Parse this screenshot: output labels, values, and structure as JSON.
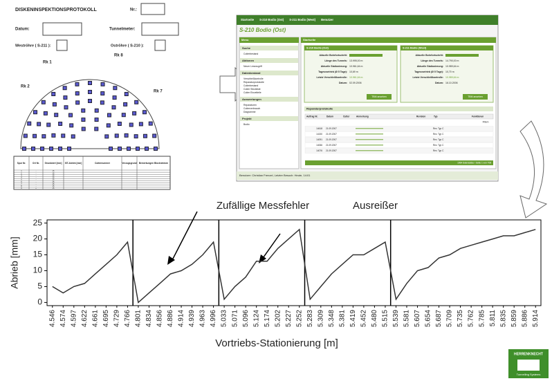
{
  "form": {
    "title": "DISKENINSPEKTIONSPROTOKOLL",
    "nr": "Nr.:",
    "datum": "Datum:",
    "tunnelmeter": "Tunnelmeter:",
    "west": "Weströhre ( S-211 ):",
    "ost": "Oströhre ( S-210 ):",
    "diagram_labels": [
      "Rk 1",
      "Rk 8",
      "Rk 2",
      "Rk 7"
    ],
    "table_headers": [
      "Spur Nr.",
      "Ort Nr.",
      "Grundwert [mm]",
      "IST-Abrieb [mm]",
      "Cutternummer",
      "Verzugsgrund",
      "Bemerkungen Blockrahmen"
    ],
    "rows": [
      [
        "1",
        "-",
        "15"
      ],
      [
        "2",
        "-",
        "15"
      ],
      [
        "3",
        "-",
        "15"
      ],
      [
        "4",
        "-",
        "15"
      ],
      [
        "5",
        "-",
        "15"
      ],
      [
        "6",
        "-",
        "15"
      ],
      [
        "7",
        "-",
        "15"
      ],
      [
        "8",
        "-",
        "15"
      ],
      [
        "9",
        "+",
        "15"
      ]
    ]
  },
  "app": {
    "nav": [
      "Startseite",
      "S-210 Bodio (Ost)",
      "S-211 Bodio (West)",
      "Benutzer"
    ],
    "heading": "S-210 Bodio (Ost)",
    "menu": "Menu",
    "sidebar": [
      {
        "title": "Suche",
        "items": [
          "Cutterbestand"
        ]
      },
      {
        "title": "Aktionen",
        "items": [
          "Neuer Lesezugriff"
        ]
      },
      {
        "title": "Datenbestand",
        "items": [
          "Verschleißkontrolle",
          "Reparaturprotokolle",
          "Cutterbestand",
          "Cutter Stückliste",
          "Cutter Einzelteile"
        ]
      },
      {
        "title": "Auswertungen",
        "items": [
          "Reparaturen",
          "Cutterverbrauch",
          "Diagramme"
        ]
      },
      {
        "title": "Projekt",
        "items": [
          "Bodio"
        ]
      }
    ],
    "start": "Startseite",
    "panels": [
      {
        "title": "S-210 Bodio (Ost)",
        "rows": [
          [
            "Aktuelle Bohrfortschritt:",
            ""
          ],
          [
            "Länge des Tunnels:",
            "13.995,00 m"
          ],
          [
            "Aktuelle Stationierung:",
            "10.961,64 m"
          ],
          [
            "Tagesvortrieb (Ø 5 Tage):",
            "10,69 m"
          ],
          [
            "Letzte Verschleißkontrolle:",
            "10.961,64 m"
          ],
          [
            "Datum:",
            "02.09.2006"
          ]
        ],
        "button": "TBM ansehen"
      },
      {
        "title": "S-211 Bodio (West)",
        "rows": [
          [
            "Aktuelle Bohrfortschritt:",
            ""
          ],
          [
            "Länge des Tunnels:",
            "14.790,00 m"
          ],
          [
            "Aktuelle Stationierung:",
            "10.989,64 m"
          ],
          [
            "Tagesvortrieb (Ø 5 Tage):",
            "10,70 m"
          ],
          [
            "Letzte Verschleißkontrolle:",
            "10.989,64 m"
          ],
          [
            "Datum:",
            "16.10.2006"
          ]
        ],
        "button": "TBM ansehen"
      }
    ],
    "table_title": "Reparaturprotokolle",
    "table_headers": [
      "Auftrag Nr.",
      "Datum",
      "Cutter",
      "Anmerkung",
      "Revision",
      "Typ",
      "Funktionen"
    ],
    "table_rows": [
      [
        "14618",
        "21.09.2007",
        "Rev. Typ C"
      ],
      [
        "14150",
        "21.09.2007",
        "Rev. Typ C"
      ],
      [
        "14091",
        "21.09.2007",
        "Rev. Typ C"
      ],
      [
        "14066",
        "21.09.2007",
        "Rev. Typ C"
      ],
      [
        "14076",
        "21.09.2007",
        "Rev. Typ C"
      ]
    ],
    "filter": "Filtern",
    "table_footer": "1964 Datensätze / Seite 1 von 708",
    "footer": "Benutzer: Christian Frenzel, Letzter Besuch: Heute, 14:01"
  },
  "chart_data": {
    "type": "line",
    "ylabel": "Abrieb [mm]",
    "xlabel": "Vortriebs-Stationierung [m]",
    "annotations": [
      "Zufällige Messfehler",
      "Ausreißer"
    ],
    "categories": [
      "4.546",
      "4.574",
      "4.597",
      "4.622",
      "4.661",
      "4.695",
      "4.729",
      "4.766",
      "4.801",
      "4.834",
      "4.856",
      "4.886",
      "4.914",
      "4.939",
      "4.963",
      "4.996",
      "5.033",
      "5.071",
      "5.096",
      "5.124",
      "5.174",
      "5.202",
      "5.227",
      "5.252",
      "5.283",
      "5.309",
      "5.348",
      "5.381",
      "5.419",
      "5.452",
      "5.480",
      "5.515",
      "5.539",
      "5.581",
      "5.607",
      "5.654",
      "5.687",
      "5.709",
      "5.735",
      "5.762",
      "5.785",
      "5.811",
      "5.835",
      "5.859",
      "5.886",
      "5.914"
    ],
    "series": [
      {
        "name": "Abrieb",
        "color": "#333333",
        "values": [
          5,
          3,
          5,
          6,
          9,
          12,
          15,
          19,
          0,
          3,
          6,
          9,
          10,
          12,
          15,
          19,
          1,
          5,
          8,
          13,
          13,
          17,
          20,
          23,
          1,
          5,
          9,
          12,
          15,
          15,
          17,
          19,
          1,
          6,
          10,
          11,
          14,
          15,
          17,
          18,
          19,
          20,
          21,
          21,
          22,
          23
        ]
      }
    ],
    "ylim": [
      -1,
      26
    ],
    "yticks": [
      0,
      5,
      10,
      15,
      20,
      25
    ]
  },
  "logo": {
    "name": "HERRENKNECHT",
    "sub": "Tunnelling Systems"
  }
}
